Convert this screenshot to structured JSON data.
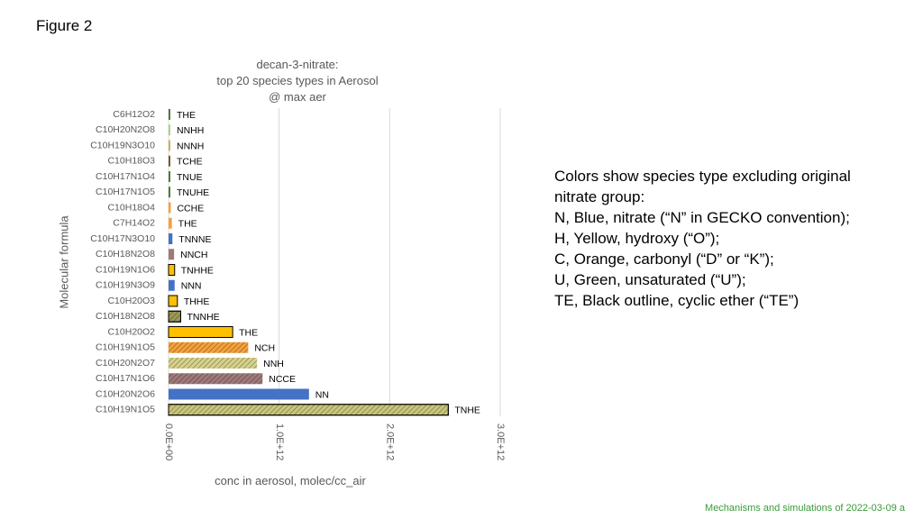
{
  "figure_label": "Figure 2",
  "notes": [
    "Colors show species type excluding original",
    "nitrate group:",
    "N, Blue, nitrate (“N” in GECKO convention);",
    "H, Yellow, hydroxy (“O”);",
    "C, Orange, carbonyl (“D” or “K”);",
    "U, Green, unsaturated (“U”);",
    "TE, Black outline, cyclic ether (“TE”)"
  ],
  "footer": "Mechanisms and simulations of 2022-03-09 a",
  "colors": {
    "blue": "#4472C4",
    "yellow": "#FFC000",
    "orange": "#F4A13A",
    "mauve": "#9E7A7A",
    "olive": "#9C9A58",
    "khaki": "#D6D28A",
    "gridline": "#D9D9D9",
    "text_gray": "#595959",
    "footer_green": "#3a9a3a"
  },
  "chart_data": {
    "type": "bar",
    "orientation": "horizontal",
    "title": [
      "decan-3-nitrate:",
      "top 20 species types in Aerosol",
      "@ max aer"
    ],
    "xlabel": "conc in aerosol, molec/cc_air",
    "ylabel": "Molecular formula",
    "xlim": [
      0,
      3000000000000.0
    ],
    "xticks": [
      0,
      1000000000000.0,
      2000000000000.0,
      3000000000000.0
    ],
    "xtick_labels": [
      "0.0E+00",
      "1.0E+12",
      "2.0E+12",
      "3.0E+12"
    ],
    "grid": true,
    "legend": "none",
    "categories": [
      "C6H12O2",
      "C10H20N2O8",
      "C10H19N3O10",
      "C10H18O3",
      "C10H17N1O4",
      "C10H17N1O5",
      "C10H18O4",
      "C7H14O2",
      "C10H17N3O10",
      "C10H18N2O8",
      "C10H19N1O6",
      "C10H19N3O9",
      "C10H20O3",
      "C10H18N2O8",
      "C10H20O2",
      "C10H19N1O5",
      "C10H20N2O7",
      "C10H17N1O6",
      "C10H20N2O6",
      "C10H19N1O5"
    ],
    "bars": [
      {
        "value": 15000000000.0,
        "label": "THE",
        "color": "#4E7A3C",
        "hatch": false,
        "outline": false
      },
      {
        "value": 15000000000.0,
        "label": "NNHH",
        "color": "#A9D18E",
        "hatch": false,
        "outline": false
      },
      {
        "value": 15000000000.0,
        "label": "NNNH",
        "color": "#C9B458",
        "hatch": false,
        "outline": false
      },
      {
        "value": 15000000000.0,
        "label": "TCHE",
        "color": "#7A5A2A",
        "hatch": false,
        "outline": false
      },
      {
        "value": 15000000000.0,
        "label": "TNUE",
        "color": "#4E7A3C",
        "hatch": false,
        "outline": false
      },
      {
        "value": 15000000000.0,
        "label": "TNUHE",
        "color": "#4E7A3C",
        "hatch": false,
        "outline": false
      },
      {
        "value": 20000000000.0,
        "label": "CCHE",
        "color": "#F4A13A",
        "hatch": false,
        "outline": false
      },
      {
        "value": 30000000000.0,
        "label": "THE",
        "color": "#F4A13A",
        "hatch": false,
        "outline": false
      },
      {
        "value": 35000000000.0,
        "label": "TNNNE",
        "color": "#4472C4",
        "hatch": false,
        "outline": false
      },
      {
        "value": 50000000000.0,
        "label": "NNCH",
        "color": "#9E7A7A",
        "hatch": false,
        "outline": false
      },
      {
        "value": 55000000000.0,
        "label": "TNHHE",
        "color": "#FFC000",
        "hatch": false,
        "outline": true
      },
      {
        "value": 55000000000.0,
        "label": "NNN",
        "color": "#4472C4",
        "hatch": false,
        "outline": false
      },
      {
        "value": 80000000000.0,
        "label": "THHE",
        "color": "#FFC000",
        "hatch": false,
        "outline": true
      },
      {
        "value": 110000000000.0,
        "label": "TNNHE",
        "color": "#9C9A58",
        "hatch": true,
        "outline": true
      },
      {
        "value": 580000000000.0,
        "label": "THE",
        "color": "#FFC000",
        "hatch": false,
        "outline": true
      },
      {
        "value": 720000000000.0,
        "label": "NCH",
        "color": "#F4A13A",
        "hatch": true,
        "outline": false
      },
      {
        "value": 800000000000.0,
        "label": "NNH",
        "color": "#D6D28A",
        "hatch": true,
        "outline": false
      },
      {
        "value": 850000000000.0,
        "label": "NCCE",
        "color": "#9E7A7A",
        "hatch": true,
        "outline": false
      },
      {
        "value": 1270000000000.0,
        "label": "NN",
        "color": "#4472C4",
        "hatch": false,
        "outline": false
      },
      {
        "value": 2530000000000.0,
        "label": "TNHE",
        "color": "#C9C67A",
        "hatch": true,
        "outline": true
      }
    ]
  }
}
